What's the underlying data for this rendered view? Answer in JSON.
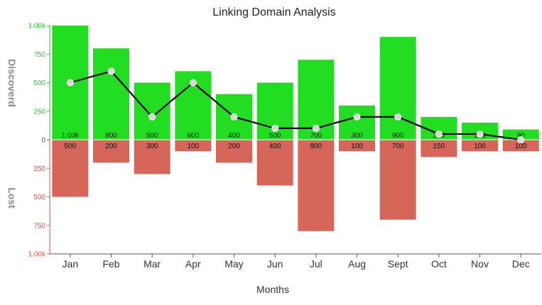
{
  "chart_data": {
    "type": "bar",
    "title": "Linking Domain Analysis",
    "xlabel": "Months",
    "categories": [
      "Jan",
      "Feb",
      "Mar",
      "Apr",
      "May",
      "Jun",
      "Jul",
      "Aug",
      "Sept",
      "Oct",
      "Nov",
      "Dec"
    ],
    "series": [
      {
        "name": "Discoverd",
        "kind": "bar-positive",
        "color": "#22dd22",
        "values": [
          1000,
          800,
          500,
          600,
          400,
          500,
          700,
          300,
          900,
          200,
          150,
          90
        ],
        "labels": [
          "1.00k",
          "800",
          "500",
          "600",
          "400",
          "500",
          "700",
          "300",
          "900",
          "200",
          "150",
          "90"
        ]
      },
      {
        "name": "Lost",
        "kind": "bar-negative",
        "color": "#d7665a",
        "values": [
          500,
          200,
          300,
          100,
          200,
          400,
          800,
          100,
          700,
          150,
          100,
          100
        ],
        "labels": [
          "500",
          "200",
          "300",
          "100",
          "200",
          "400",
          "800",
          "100",
          "700",
          "150",
          "100",
          "100"
        ]
      },
      {
        "kind": "line",
        "color": "#000000",
        "marker_color": "#d9d9d9",
        "values": [
          500,
          600,
          200,
          500,
          200,
          100,
          100,
          200,
          200,
          50,
          50,
          0
        ]
      }
    ],
    "ylim_top": [
      0,
      1000
    ],
    "ylim_bottom": [
      0,
      1000
    ],
    "yticks_top": [
      "0",
      "250",
      "500",
      "750",
      "1.00k"
    ],
    "yticks_bottom": [
      "250",
      "500",
      "750",
      "1.00k"
    ],
    "ytick_color_top": "#22cc22",
    "ytick_color_bottom": "#d9534f",
    "ylabel_top": "Discoverd",
    "ylabel_bottom": "Lost",
    "grid": false,
    "legend": "none"
  }
}
